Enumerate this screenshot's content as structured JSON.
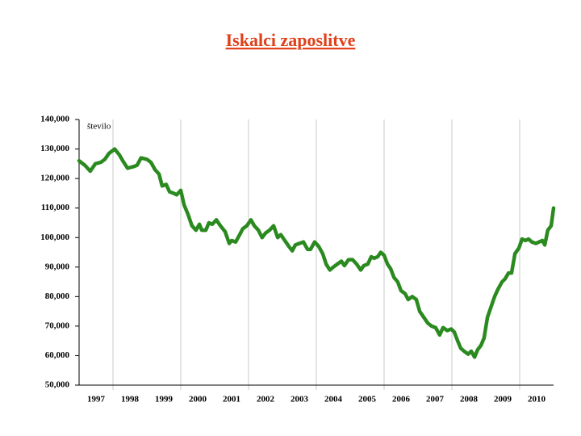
{
  "chart_data": {
    "type": "line",
    "title": "Iskalci zaposlitve",
    "ylabel": "število",
    "color": "#2a8a1f",
    "xlim": [
      1997,
      2011
    ],
    "ylim": [
      50000,
      140000
    ],
    "yticks": [
      {
        "value": 50000,
        "label": "50,000"
      },
      {
        "value": 60000,
        "label": "60,000"
      },
      {
        "value": 70000,
        "label": "70,000"
      },
      {
        "value": 80000,
        "label": "80,000"
      },
      {
        "value": 90000,
        "label": "90,000"
      },
      {
        "value": 100000,
        "label": "100,000"
      },
      {
        "value": 110000,
        "label": "110,000"
      },
      {
        "value": 120000,
        "label": "120,000"
      },
      {
        "value": 130000,
        "label": "130,000"
      },
      {
        "value": 140000,
        "label": "140,000"
      }
    ],
    "xticks": [
      {
        "value": 1997.5,
        "label": "1997"
      },
      {
        "value": 1998.5,
        "label": "1998"
      },
      {
        "value": 1999.5,
        "label": "1999"
      },
      {
        "value": 2000.5,
        "label": "2000"
      },
      {
        "value": 2001.5,
        "label": "2001"
      },
      {
        "value": 2002.5,
        "label": "2002"
      },
      {
        "value": 2003.5,
        "label": "2003"
      },
      {
        "value": 2004.5,
        "label": "2004"
      },
      {
        "value": 2005.5,
        "label": "2005"
      },
      {
        "value": 2006.5,
        "label": "2006"
      },
      {
        "value": 2007.5,
        "label": "2007"
      },
      {
        "value": 2008.5,
        "label": "2008"
      },
      {
        "value": 2009.5,
        "label": "2009"
      },
      {
        "value": 2010.5,
        "label": "2010"
      }
    ],
    "xgrid": [
      1998,
      2000,
      2002,
      2004,
      2006,
      2008,
      2010
    ],
    "x": [
      1997.0,
      1997.17,
      1997.33,
      1997.48,
      1997.64,
      1997.76,
      1997.88,
      1998.05,
      1998.19,
      1998.29,
      1998.43,
      1998.6,
      1998.71,
      1998.83,
      1999.0,
      1999.12,
      1999.24,
      1999.36,
      1999.45,
      1999.57,
      1999.67,
      1999.79,
      1999.88,
      2000.0,
      2000.1,
      2000.21,
      2000.33,
      2000.45,
      2000.55,
      2000.62,
      2000.74,
      2000.83,
      2000.93,
      2001.05,
      2001.17,
      2001.31,
      2001.43,
      2001.5,
      2001.62,
      2001.74,
      2001.83,
      2001.95,
      2002.07,
      2002.17,
      2002.29,
      2002.4,
      2002.5,
      2002.62,
      2002.74,
      2002.86,
      2002.95,
      2003.07,
      2003.19,
      2003.29,
      2003.38,
      2003.5,
      2003.62,
      2003.74,
      2003.83,
      2003.95,
      2004.07,
      2004.19,
      2004.29,
      2004.4,
      2004.5,
      2004.62,
      2004.74,
      2004.83,
      2004.95,
      2005.07,
      2005.19,
      2005.31,
      2005.4,
      2005.52,
      2005.62,
      2005.71,
      2005.81,
      2005.9,
      2006.0,
      2006.1,
      2006.19,
      2006.29,
      2006.4,
      2006.5,
      2006.62,
      2006.71,
      2006.83,
      2006.95,
      2007.05,
      2007.17,
      2007.29,
      2007.4,
      2007.52,
      2007.64,
      2007.74,
      2007.86,
      2007.98,
      2008.07,
      2008.17,
      2008.26,
      2008.36,
      2008.48,
      2008.57,
      2008.67,
      2008.76,
      2008.86,
      2008.95,
      2009.05,
      2009.14,
      2009.26,
      2009.36,
      2009.48,
      2009.57,
      2009.67,
      2009.76,
      2009.86,
      2009.98,
      2010.07,
      2010.17,
      2010.26,
      2010.36,
      2010.48,
      2010.57,
      2010.67,
      2010.74,
      2010.83,
      2010.93,
      2011.0
    ],
    "values": [
      126000,
      124500,
      122500,
      125000,
      125500,
      126500,
      128500,
      130000,
      128000,
      126000,
      123500,
      124000,
      124500,
      127000,
      126500,
      125500,
      123000,
      121500,
      117500,
      118000,
      115500,
      115000,
      114500,
      116000,
      111000,
      108000,
      104000,
      102500,
      104500,
      102500,
      102500,
      105000,
      104500,
      106000,
      104000,
      102000,
      98000,
      99000,
      98500,
      101000,
      103000,
      104000,
      106000,
      104000,
      102500,
      100000,
      101500,
      102500,
      104000,
      100000,
      101000,
      99000,
      97000,
      95500,
      97500,
      98000,
      98500,
      96000,
      96000,
      98500,
      97000,
      94500,
      91000,
      89000,
      90000,
      91000,
      92000,
      90500,
      92500,
      92500,
      91000,
      89000,
      90500,
      91000,
      93500,
      93000,
      93500,
      95000,
      94000,
      91000,
      89500,
      86500,
      85000,
      82000,
      81000,
      79000,
      80000,
      79000,
      75000,
      73000,
      71000,
      70000,
      69500,
      67000,
      69500,
      68500,
      69000,
      68000,
      65000,
      62500,
      61500,
      60500,
      61500,
      59500,
      62000,
      63500,
      66000,
      73000,
      76000,
      80000,
      82500,
      85000,
      86000,
      88000,
      88000,
      94500,
      96500,
      99500,
      99000,
      99500,
      98500,
      98000,
      98500,
      99000,
      97500,
      102500,
      104000,
      110000
    ]
  }
}
